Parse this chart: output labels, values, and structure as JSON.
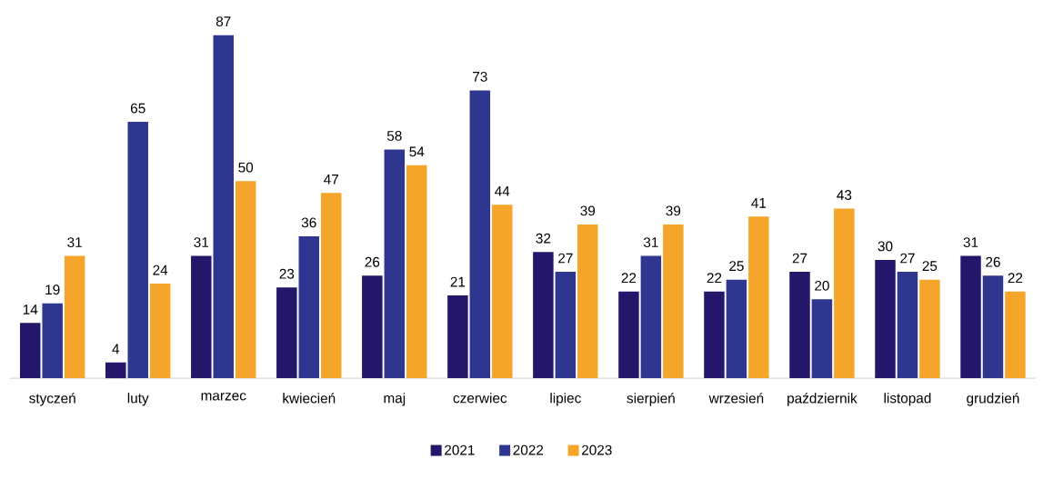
{
  "chart_data": {
    "type": "bar",
    "categories": [
      "styczeń",
      "luty",
      "marzec",
      "kwiecień",
      "maj",
      "czerwiec",
      "lipiec",
      "sierpień",
      "wrzesień",
      "październik",
      "listopad",
      "grudzień"
    ],
    "series": [
      {
        "name": "2021",
        "color": "#24176b",
        "values": [
          14,
          4,
          31,
          23,
          26,
          21,
          32,
          22,
          22,
          27,
          30,
          31
        ]
      },
      {
        "name": "2022",
        "color": "#2e368f",
        "values": [
          19,
          65,
          87,
          36,
          58,
          73,
          27,
          31,
          25,
          20,
          27,
          26
        ]
      },
      {
        "name": "2023",
        "color": "#f5a52a",
        "values": [
          31,
          24,
          50,
          47,
          54,
          44,
          39,
          39,
          41,
          43,
          25,
          22
        ]
      }
    ],
    "data_labels": true,
    "grid": false,
    "legend": "bottom"
  }
}
